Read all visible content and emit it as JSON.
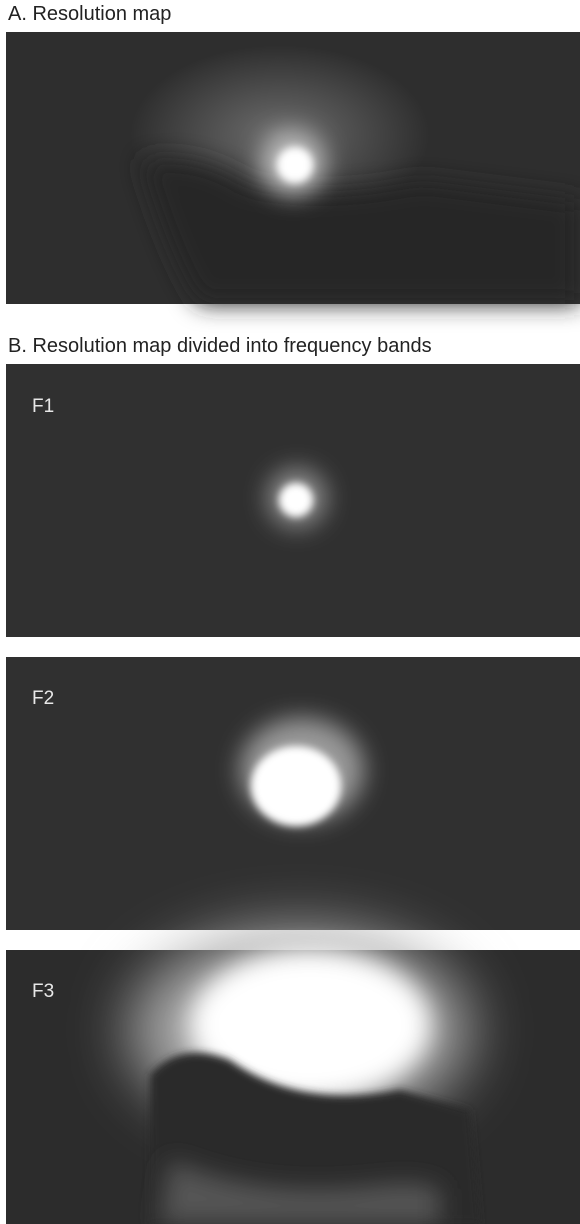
{
  "panel_a": {
    "title": "A. Resolution map"
  },
  "panel_b": {
    "title": "B. Resolution map divided into frequency bands",
    "bands": [
      {
        "label": "F1"
      },
      {
        "label": "F2"
      },
      {
        "label": "F3"
      }
    ]
  }
}
